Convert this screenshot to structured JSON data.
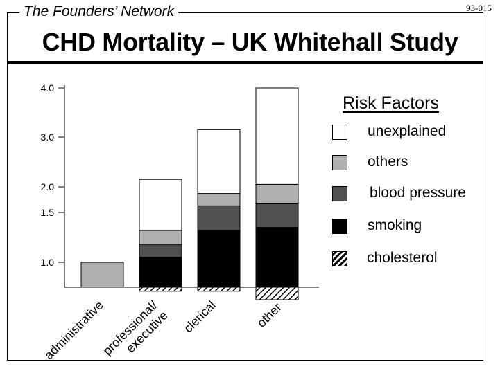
{
  "header": {
    "network": "The Founders’ Network",
    "code": "93-015",
    "title": "CHD Mortality – UK Whitehall Study"
  },
  "legend": {
    "title": "Risk Factors",
    "items": [
      {
        "key": "unexplained",
        "label": "unexplained",
        "color": "#ffffff"
      },
      {
        "key": "others",
        "label": "others",
        "color": "#b0b0b0"
      },
      {
        "key": "blood_pressure",
        "label": "blood pressure",
        "color": "#505050"
      },
      {
        "key": "smoking",
        "label": "smoking",
        "color": "#000000"
      },
      {
        "key": "cholesterol",
        "label": "cholesterol",
        "color": "hatch"
      }
    ]
  },
  "chart_data": {
    "type": "bar",
    "stacked": true,
    "title": "CHD Mortality – UK Whitehall Study",
    "xlabel": "",
    "ylabel": "",
    "yticks": [
      {
        "value": 1.0,
        "label": "1.0"
      },
      {
        "value": 1.5,
        "label": "1.5"
      },
      {
        "value": 2.0,
        "label": "2.0"
      },
      {
        "value": 3.0,
        "label": "3.0"
      },
      {
        "value": 4.0,
        "label": "4.0"
      }
    ],
    "ylim": [
      0.5,
      4.0
    ],
    "baseline": 0.5,
    "categories": [
      {
        "label": "administrative",
        "lines": [
          "administrative"
        ]
      },
      {
        "label": "professional/ executive",
        "lines": [
          "professional/",
          "executive"
        ]
      },
      {
        "label": "clerical",
        "lines": [
          "clerical"
        ]
      },
      {
        "label": "other",
        "lines": [
          "other"
        ]
      }
    ],
    "bars": [
      {
        "category": "administrative",
        "total": 1.0,
        "single_color": "#b0b0b0",
        "segments": []
      },
      {
        "category": "professional/ executive",
        "total": 2.15,
        "cholesterol": 0.08,
        "segments": [
          {
            "series": "smoking",
            "from": 0.5,
            "to": 1.05
          },
          {
            "series": "blood_pressure",
            "from": 1.05,
            "to": 1.18
          },
          {
            "series": "others",
            "from": 1.18,
            "to": 1.32
          },
          {
            "series": "unexplained",
            "from": 1.32,
            "to": 2.15
          }
        ]
      },
      {
        "category": "clerical",
        "total": 3.15,
        "cholesterol": 0.08,
        "segments": [
          {
            "series": "smoking",
            "from": 0.5,
            "to": 1.32
          },
          {
            "series": "blood_pressure",
            "from": 1.32,
            "to": 1.63
          },
          {
            "series": "others",
            "from": 1.63,
            "to": 1.87
          },
          {
            "series": "unexplained",
            "from": 1.87,
            "to": 3.15
          }
        ]
      },
      {
        "category": "other",
        "total": 4.0,
        "cholesterol": 0.25,
        "segments": [
          {
            "series": "smoking",
            "from": 0.5,
            "to": 1.35
          },
          {
            "series": "blood_pressure",
            "from": 1.35,
            "to": 1.67
          },
          {
            "series": "others",
            "from": 1.67,
            "to": 2.05
          },
          {
            "series": "unexplained",
            "from": 2.05,
            "to": 4.0
          }
        ]
      }
    ]
  }
}
